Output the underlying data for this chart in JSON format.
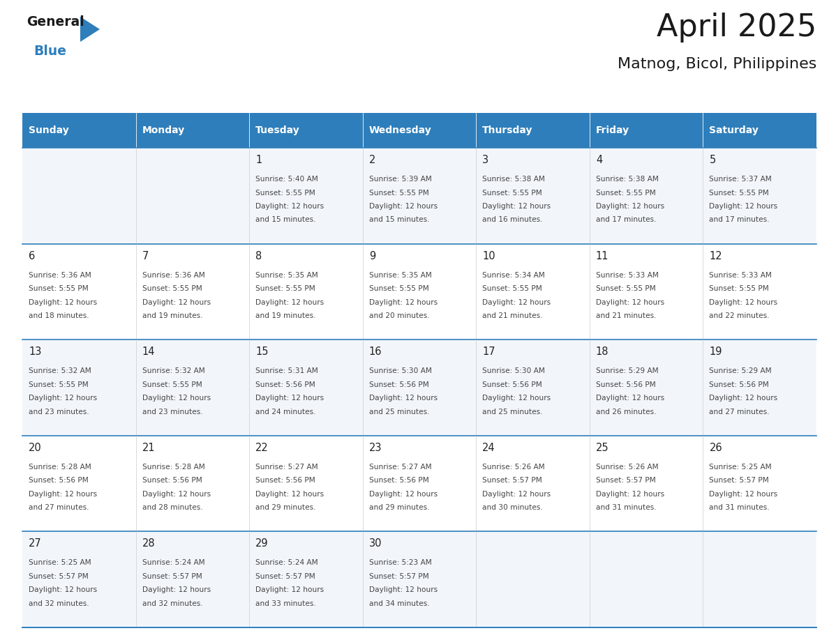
{
  "title": "April 2025",
  "subtitle": "Matnog, Bicol, Philippines",
  "header_bg": "#2e7ebb",
  "header_text": "#ffffff",
  "row_bg_even": "#f2f6fb",
  "row_bg_odd": "#ffffff",
  "cell_text": "#444444",
  "day_number_color": "#222222",
  "border_color": "#2e7ebb",
  "days_of_week": [
    "Sunday",
    "Monday",
    "Tuesday",
    "Wednesday",
    "Thursday",
    "Friday",
    "Saturday"
  ],
  "calendar_data": [
    [
      {
        "day": "",
        "sunrise": "",
        "sunset": "",
        "daylight": ""
      },
      {
        "day": "",
        "sunrise": "",
        "sunset": "",
        "daylight": ""
      },
      {
        "day": "1",
        "sunrise": "5:40 AM",
        "sunset": "5:55 PM",
        "daylight": "and 15 minutes."
      },
      {
        "day": "2",
        "sunrise": "5:39 AM",
        "sunset": "5:55 PM",
        "daylight": "and 15 minutes."
      },
      {
        "day": "3",
        "sunrise": "5:38 AM",
        "sunset": "5:55 PM",
        "daylight": "and 16 minutes."
      },
      {
        "day": "4",
        "sunrise": "5:38 AM",
        "sunset": "5:55 PM",
        "daylight": "and 17 minutes."
      },
      {
        "day": "5",
        "sunrise": "5:37 AM",
        "sunset": "5:55 PM",
        "daylight": "and 17 minutes."
      }
    ],
    [
      {
        "day": "6",
        "sunrise": "5:36 AM",
        "sunset": "5:55 PM",
        "daylight": "and 18 minutes."
      },
      {
        "day": "7",
        "sunrise": "5:36 AM",
        "sunset": "5:55 PM",
        "daylight": "and 19 minutes."
      },
      {
        "day": "8",
        "sunrise": "5:35 AM",
        "sunset": "5:55 PM",
        "daylight": "and 19 minutes."
      },
      {
        "day": "9",
        "sunrise": "5:35 AM",
        "sunset": "5:55 PM",
        "daylight": "and 20 minutes."
      },
      {
        "day": "10",
        "sunrise": "5:34 AM",
        "sunset": "5:55 PM",
        "daylight": "and 21 minutes."
      },
      {
        "day": "11",
        "sunrise": "5:33 AM",
        "sunset": "5:55 PM",
        "daylight": "and 21 minutes."
      },
      {
        "day": "12",
        "sunrise": "5:33 AM",
        "sunset": "5:55 PM",
        "daylight": "and 22 minutes."
      }
    ],
    [
      {
        "day": "13",
        "sunrise": "5:32 AM",
        "sunset": "5:55 PM",
        "daylight": "and 23 minutes."
      },
      {
        "day": "14",
        "sunrise": "5:32 AM",
        "sunset": "5:55 PM",
        "daylight": "and 23 minutes."
      },
      {
        "day": "15",
        "sunrise": "5:31 AM",
        "sunset": "5:56 PM",
        "daylight": "and 24 minutes."
      },
      {
        "day": "16",
        "sunrise": "5:30 AM",
        "sunset": "5:56 PM",
        "daylight": "and 25 minutes."
      },
      {
        "day": "17",
        "sunrise": "5:30 AM",
        "sunset": "5:56 PM",
        "daylight": "and 25 minutes."
      },
      {
        "day": "18",
        "sunrise": "5:29 AM",
        "sunset": "5:56 PM",
        "daylight": "and 26 minutes."
      },
      {
        "day": "19",
        "sunrise": "5:29 AM",
        "sunset": "5:56 PM",
        "daylight": "and 27 minutes."
      }
    ],
    [
      {
        "day": "20",
        "sunrise": "5:28 AM",
        "sunset": "5:56 PM",
        "daylight": "and 27 minutes."
      },
      {
        "day": "21",
        "sunrise": "5:28 AM",
        "sunset": "5:56 PM",
        "daylight": "and 28 minutes."
      },
      {
        "day": "22",
        "sunrise": "5:27 AM",
        "sunset": "5:56 PM",
        "daylight": "and 29 minutes."
      },
      {
        "day": "23",
        "sunrise": "5:27 AM",
        "sunset": "5:56 PM",
        "daylight": "and 29 minutes."
      },
      {
        "day": "24",
        "sunrise": "5:26 AM",
        "sunset": "5:57 PM",
        "daylight": "and 30 minutes."
      },
      {
        "day": "25",
        "sunrise": "5:26 AM",
        "sunset": "5:57 PM",
        "daylight": "and 31 minutes."
      },
      {
        "day": "26",
        "sunrise": "5:25 AM",
        "sunset": "5:57 PM",
        "daylight": "and 31 minutes."
      }
    ],
    [
      {
        "day": "27",
        "sunrise": "5:25 AM",
        "sunset": "5:57 PM",
        "daylight": "and 32 minutes."
      },
      {
        "day": "28",
        "sunrise": "5:24 AM",
        "sunset": "5:57 PM",
        "daylight": "and 32 minutes."
      },
      {
        "day": "29",
        "sunrise": "5:24 AM",
        "sunset": "5:57 PM",
        "daylight": "and 33 minutes."
      },
      {
        "day": "30",
        "sunrise": "5:23 AM",
        "sunset": "5:57 PM",
        "daylight": "and 34 minutes."
      },
      {
        "day": "",
        "sunrise": "",
        "sunset": "",
        "daylight": ""
      },
      {
        "day": "",
        "sunrise": "",
        "sunset": "",
        "daylight": ""
      },
      {
        "day": "",
        "sunrise": "",
        "sunset": "",
        "daylight": ""
      }
    ]
  ]
}
